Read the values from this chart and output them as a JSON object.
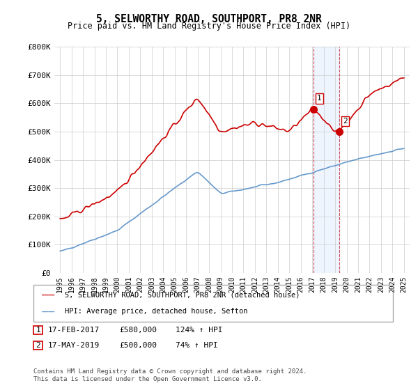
{
  "title": "5, SELWORTHY ROAD, SOUTHPORT, PR8 2NR",
  "subtitle": "Price paid vs. HM Land Registry's House Price Index (HPI)",
  "ylabel_ticks": [
    "£0",
    "£100K",
    "£200K",
    "£300K",
    "£400K",
    "£500K",
    "£600K",
    "£700K",
    "£800K"
  ],
  "ytick_vals": [
    0,
    100000,
    200000,
    300000,
    400000,
    500000,
    600000,
    700000,
    800000
  ],
  "ylim": [
    0,
    800000
  ],
  "sale1": {
    "date_num": 2017.12,
    "price": 580000,
    "label": "1",
    "date_str": "17-FEB-2017",
    "pct": "124%"
  },
  "sale2": {
    "date_num": 2019.37,
    "price": 500000,
    "label": "2",
    "date_str": "17-MAY-2019",
    "pct": "74%"
  },
  "red_color": "#cc0000",
  "blue_color": "#6699cc",
  "shade_color": "#cce0ff",
  "legend1": "5, SELWORTHY ROAD, SOUTHPORT, PR8 2NR (detached house)",
  "legend2": "HPI: Average price, detached house, Sefton",
  "footer": "Contains HM Land Registry data © Crown copyright and database right 2024.\nThis data is licensed under the Open Government Licence v3.0.",
  "annotation1": "17-FEB-2017          £580,000          124% ↑ HPI",
  "annotation2": "17-MAY-2019          £500,000          74% ↑ HPI"
}
